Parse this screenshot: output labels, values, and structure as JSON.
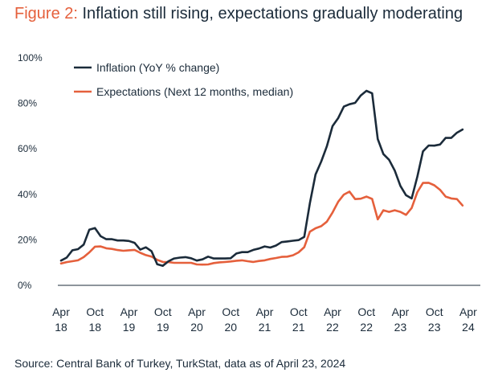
{
  "figure": {
    "title_prefix": "Figure 2:",
    "title_text": " Inflation still rising, expectations gradually moderating",
    "source": "Source: Central Bank of Turkey, TurkStat, data as of April 23, 2024"
  },
  "chart_data": {
    "type": "line",
    "title": "Inflation still rising, expectations gradually moderating",
    "xlabel": "",
    "ylabel": "",
    "ylim": [
      0,
      100
    ],
    "xlim": [
      0,
      73
    ],
    "yticks": [
      0,
      20,
      40,
      60,
      80,
      100
    ],
    "ytick_labels": [
      "0%",
      "20%",
      "40%",
      "60%",
      "80%",
      "100%"
    ],
    "xticks": [
      {
        "x": 0,
        "line1": "Apr",
        "line2": "18"
      },
      {
        "x": 6,
        "line1": "Oct",
        "line2": "18"
      },
      {
        "x": 12,
        "line1": "Apr",
        "line2": "19"
      },
      {
        "x": 18,
        "line1": "Oct",
        "line2": "19"
      },
      {
        "x": 24,
        "line1": "Apr",
        "line2": "20"
      },
      {
        "x": 30,
        "line1": "Oct",
        "line2": "20"
      },
      {
        "x": 36,
        "line1": "Apr",
        "line2": "21"
      },
      {
        "x": 42,
        "line1": "Oct",
        "line2": "21"
      },
      {
        "x": 48,
        "line1": "Apr",
        "line2": "22"
      },
      {
        "x": 54,
        "line1": "Oct",
        "line2": "22"
      },
      {
        "x": 60,
        "line1": "Apr",
        "line2": "23"
      },
      {
        "x": 66,
        "line1": "Oct",
        "line2": "23"
      },
      {
        "x": 72,
        "line1": "Apr",
        "line2": "24"
      }
    ],
    "legend_position": "top-left",
    "grid": false,
    "series": [
      {
        "name": "Inflation (YoY % change)",
        "color": "#1b2b3a",
        "values": [
          10.9,
          12.2,
          15.4,
          15.9,
          17.9,
          24.5,
          25.2,
          21.6,
          20.3,
          20.3,
          19.7,
          19.7,
          19.5,
          18.7,
          15.7,
          16.7,
          15.0,
          9.3,
          8.6,
          10.6,
          11.8,
          12.2,
          12.4,
          11.9,
          10.9,
          11.4,
          12.6,
          11.8,
          11.8,
          11.8,
          11.9,
          14.0,
          14.6,
          14.6,
          15.6,
          16.2,
          17.1,
          16.6,
          17.5,
          19.0,
          19.3,
          19.6,
          19.9,
          21.3,
          36.1,
          48.7,
          54.4,
          61.1,
          70.0,
          73.5,
          78.6,
          79.6,
          80.2,
          83.5,
          85.5,
          84.4,
          64.3,
          57.7,
          55.2,
          50.5,
          43.7,
          39.6,
          38.2,
          47.8,
          58.9,
          61.5,
          61.4,
          61.9,
          64.8,
          64.8,
          67.1,
          68.5
        ]
      },
      {
        "name": "Expectations (Next 12 months, median)",
        "color": "#e5603c",
        "values": [
          9.6,
          10.2,
          10.6,
          11.0,
          12.4,
          14.5,
          17.0,
          17.1,
          16.3,
          16.0,
          15.5,
          15.2,
          15.4,
          15.6,
          14.3,
          13.3,
          12.6,
          11.2,
          10.3,
          10.2,
          9.9,
          9.9,
          9.9,
          9.9,
          9.2,
          9.1,
          9.2,
          9.8,
          10.1,
          10.3,
          10.5,
          10.8,
          11.0,
          10.6,
          10.3,
          10.7,
          11.0,
          11.6,
          12.0,
          12.5,
          12.6,
          13.2,
          14.5,
          16.8,
          23.6,
          25.1,
          26.0,
          28.0,
          32.0,
          36.7,
          39.9,
          41.2,
          37.9,
          38.1,
          39.0,
          38.0,
          29.0,
          33.0,
          32.3,
          33.0,
          32.3,
          31.0,
          34.0,
          41.0,
          45.0,
          45.1,
          44.0,
          42.0,
          39.0,
          38.2,
          37.9,
          35.1
        ]
      }
    ]
  }
}
